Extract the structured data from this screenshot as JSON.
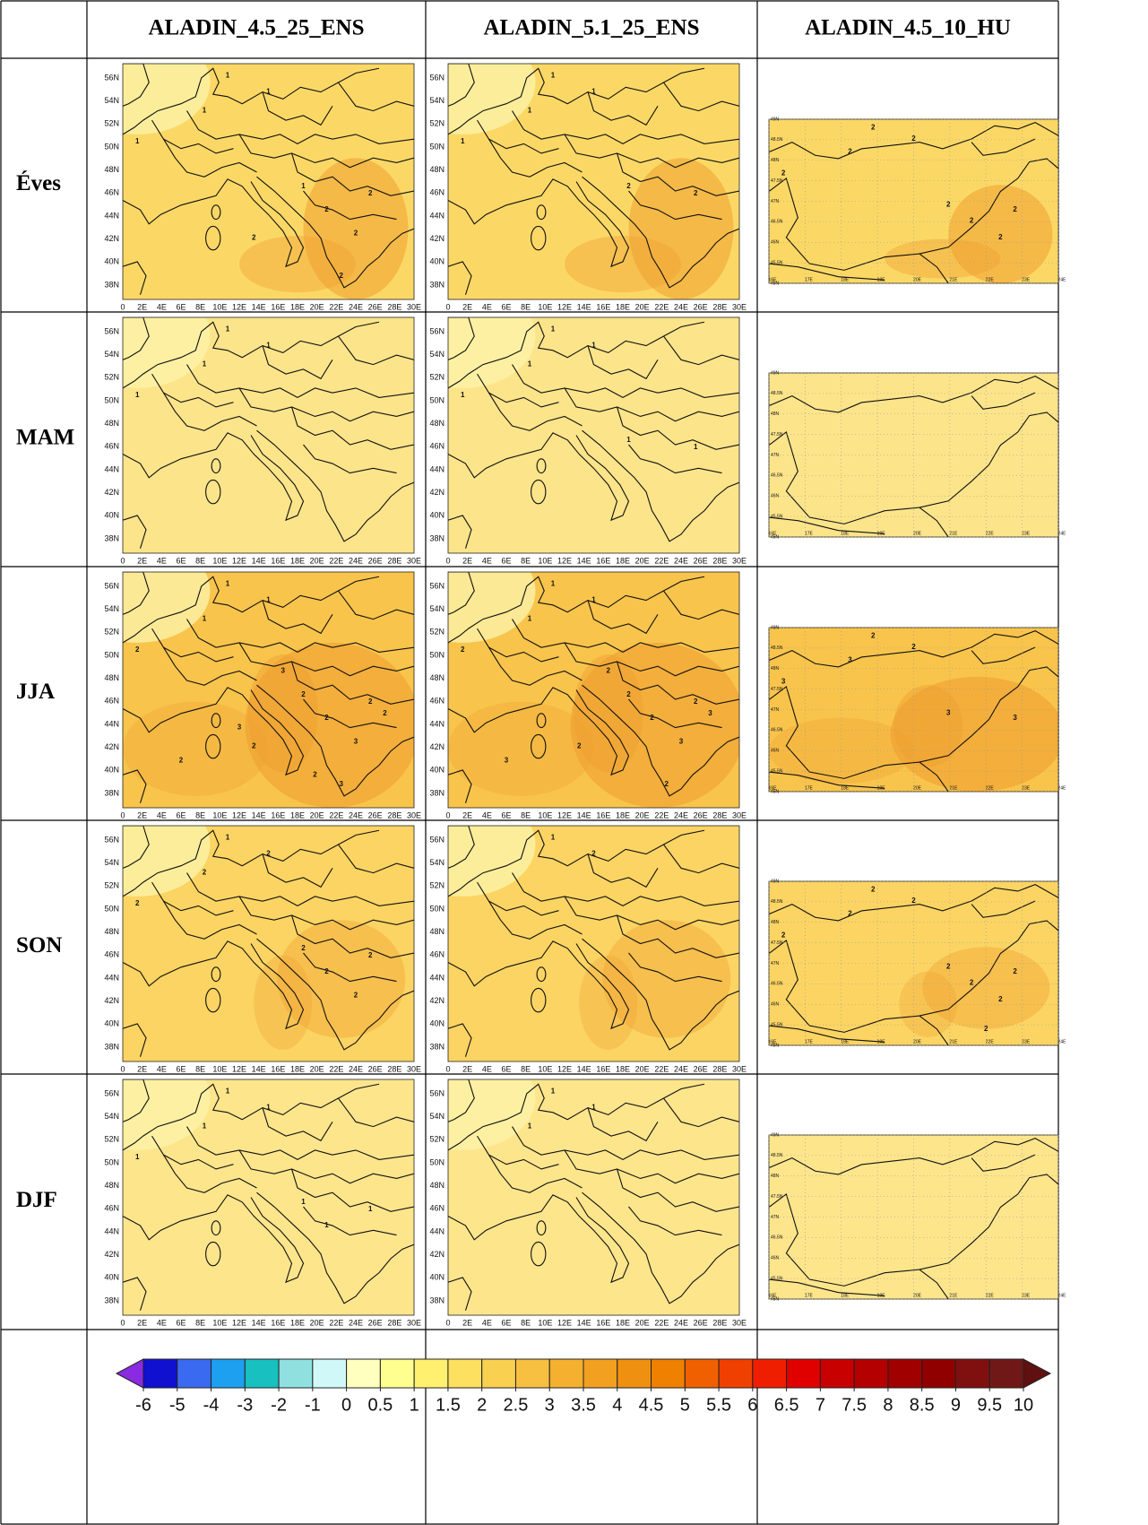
{
  "header": {
    "columns": [
      "ALADIN_4.5_25_ENS",
      "ALADIN_5.1_25_ENS",
      "ALADIN_4.5_10_HU"
    ]
  },
  "rows": [
    {
      "label": "Éves",
      "maps": [
        {
          "contours": [
            "1",
            "1",
            "1",
            "1",
            "1",
            "2",
            "2",
            "2",
            "2",
            "2"
          ]
        },
        {
          "contours": [
            "1",
            "1",
            "1",
            "1",
            "2",
            "2"
          ]
        },
        {
          "contours": [
            "2",
            "2",
            "2",
            "2",
            "2",
            "2",
            "2",
            "2"
          ]
        }
      ]
    },
    {
      "label": "MAM",
      "maps": [
        {
          "contours": [
            "1",
            "1",
            "1",
            "1"
          ]
        },
        {
          "contours": [
            "1",
            "1",
            "1",
            "1",
            "1",
            "1"
          ]
        },
        {
          "contours": []
        }
      ]
    },
    {
      "label": "JJA",
      "maps": [
        {
          "contours": [
            "1",
            "1",
            "1",
            "2",
            "2",
            "2",
            "2",
            "3",
            "3",
            "2",
            "2",
            "3",
            "2",
            "2",
            "3"
          ]
        },
        {
          "contours": [
            "1",
            "1",
            "1",
            "2",
            "2",
            "2",
            "2",
            "3",
            "2",
            "2",
            "3",
            "2",
            "3"
          ]
        },
        {
          "contours": [
            "2",
            "2",
            "3",
            "3",
            "3",
            "3"
          ]
        }
      ]
    },
    {
      "label": "SON",
      "maps": [
        {
          "contours": [
            "1",
            "2",
            "2",
            "2",
            "2",
            "2",
            "2",
            "2"
          ]
        },
        {
          "contours": [
            "1",
            "2"
          ]
        },
        {
          "contours": [
            "2",
            "2",
            "2",
            "2",
            "2",
            "2",
            "2",
            "2",
            "2"
          ]
        }
      ]
    },
    {
      "label": "DJF",
      "maps": [
        {
          "contours": [
            "1",
            "1",
            "1",
            "1",
            "1",
            "1",
            "1"
          ]
        },
        {
          "contours": [
            "1",
            "1",
            "1"
          ]
        },
        {
          "contours": []
        }
      ]
    }
  ],
  "map_axes": {
    "lat": [
      "56N",
      "54N",
      "52N",
      "50N",
      "48N",
      "46N",
      "44N",
      "42N",
      "40N",
      "38N"
    ],
    "lon": [
      "0",
      "2E",
      "4E",
      "6E",
      "8E",
      "10E",
      "12E",
      "14E",
      "16E",
      "18E",
      "20E",
      "22E",
      "24E",
      "26E",
      "28E",
      "30E"
    ]
  },
  "hu_axes": {
    "lat": [
      "49N",
      "48.5N",
      "48N",
      "47.5N",
      "47N",
      "46.5N",
      "46N",
      "45.5N",
      "45N"
    ],
    "lon": [
      "16E",
      "17E",
      "18E",
      "19E",
      "20E",
      "21E",
      "22E",
      "23E",
      "24E"
    ]
  },
  "colorbar": {
    "levels": [
      -6,
      -5,
      -4,
      -3,
      -2,
      -1,
      0,
      0.5,
      1,
      1.5,
      2,
      2.5,
      3,
      3.5,
      4,
      4.5,
      5,
      5.5,
      6,
      6.5,
      7,
      7.5,
      8,
      8.5,
      9,
      9.5,
      10
    ],
    "colors": [
      "#8a2be2",
      "#1010d0",
      "#3a6af0",
      "#1ea0f0",
      "#18c0c0",
      "#90e0e0",
      "#d0f8f8",
      "#ffffc0",
      "#ffff90",
      "#fff070",
      "#fde060",
      "#fad050",
      "#f8c040",
      "#f5b030",
      "#f2a020",
      "#f09010",
      "#f08000",
      "#f06000",
      "#f04000",
      "#f01e00",
      "#e00000",
      "#c80000",
      "#b40000",
      "#a00000",
      "#900000",
      "#801010",
      "#701818",
      "#601010"
    ]
  }
}
